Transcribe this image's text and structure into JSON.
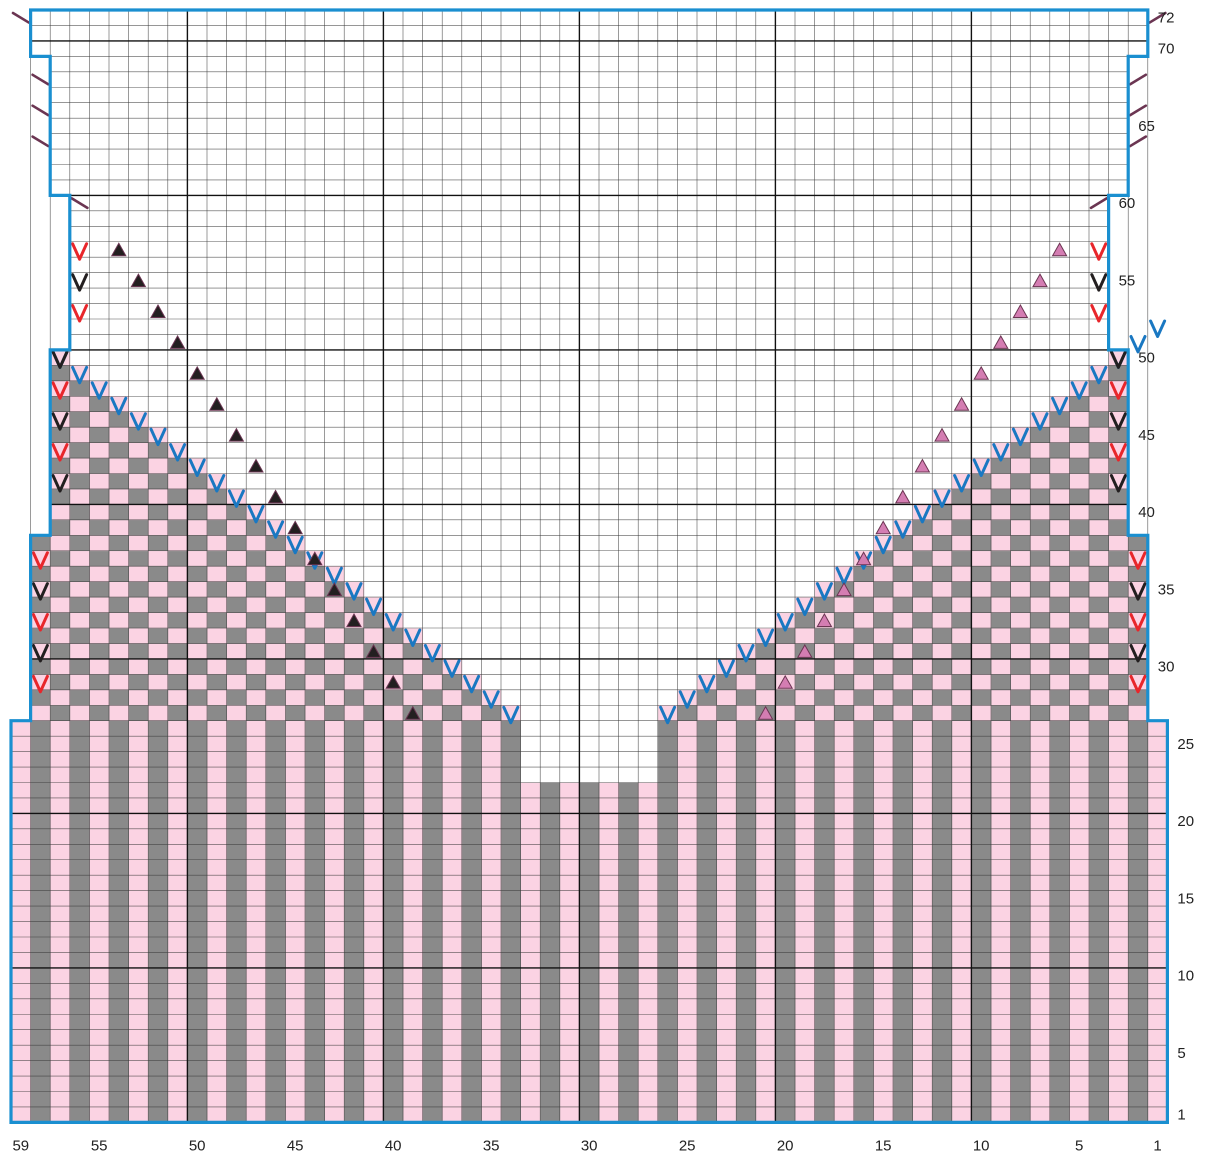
{
  "chart_data": {
    "type": "knitting-chart",
    "stitches": 59,
    "rows": 72,
    "row_labels": [
      "1",
      "5",
      "10",
      "15",
      "20",
      "25",
      "30",
      "35",
      "40",
      "45",
      "50",
      "55",
      "60",
      "65",
      "70",
      "72"
    ],
    "stitch_labels": [
      "59",
      "55",
      "50",
      "45",
      "40",
      "35",
      "30",
      "25",
      "20",
      "15",
      "10",
      "5",
      "1"
    ],
    "colors": {
      "contrast": "#8a8a8a",
      "main": "#fbd3e3",
      "border": "#1a8fd0",
      "blue_v": "#1a78c2",
      "red_v": "#e8262b",
      "black_v": "#231f20",
      "pink_triangle": "#d47db2",
      "black_triangle": "#231f20",
      "diag_line": "#6b3552"
    },
    "body": {
      "rows": [
        1,
        26
      ],
      "pattern": "vertical stripes, contrast on even stitch columns",
      "center_opening": {
        "stitches": [
          27,
          33
        ],
        "from_row": 23
      }
    },
    "neck_opening": {
      "blue_v_right_side": [
        [
          26,
          27
        ],
        [
          25,
          28
        ],
        [
          24,
          29
        ],
        [
          23,
          30
        ],
        [
          22,
          31
        ],
        [
          21,
          32
        ],
        [
          20,
          33
        ],
        [
          19,
          34
        ],
        [
          18,
          35
        ],
        [
          17,
          36
        ],
        [
          16,
          37
        ],
        [
          15,
          38
        ],
        [
          14,
          39
        ],
        [
          13,
          40
        ],
        [
          12,
          41
        ],
        [
          11,
          42
        ],
        [
          10,
          43
        ],
        [
          9,
          44
        ],
        [
          8,
          45
        ],
        [
          7,
          46
        ],
        [
          6,
          47
        ],
        [
          5,
          48
        ],
        [
          4,
          49
        ],
        [
          3,
          50
        ],
        [
          2,
          51
        ],
        [
          1,
          52
        ]
      ],
      "blue_v_left_side": [
        [
          34,
          27
        ],
        [
          35,
          28
        ],
        [
          36,
          29
        ],
        [
          37,
          30
        ],
        [
          38,
          31
        ],
        [
          39,
          32
        ],
        [
          40,
          33
        ],
        [
          41,
          34
        ],
        [
          42,
          35
        ],
        [
          43,
          36
        ],
        [
          44,
          37
        ],
        [
          45,
          38
        ],
        [
          46,
          39
        ],
        [
          47,
          40
        ],
        [
          48,
          41
        ],
        [
          49,
          42
        ],
        [
          50,
          43
        ],
        [
          51,
          44
        ],
        [
          52,
          45
        ],
        [
          53,
          46
        ],
        [
          54,
          47
        ],
        [
          55,
          48
        ],
        [
          56,
          49
        ],
        [
          57,
          50
        ]
      ]
    },
    "pink_triangles": [
      [
        21,
        27
      ],
      [
        20,
        29
      ],
      [
        19,
        31
      ],
      [
        18,
        33
      ],
      [
        17,
        35
      ],
      [
        16,
        37
      ],
      [
        15,
        39
      ],
      [
        14,
        41
      ],
      [
        13,
        43
      ],
      [
        12,
        45
      ],
      [
        11,
        47
      ],
      [
        10,
        49
      ],
      [
        9,
        51
      ],
      [
        8,
        53
      ],
      [
        7,
        55
      ],
      [
        6,
        57
      ]
    ],
    "black_triangles": [
      [
        39,
        27
      ],
      [
        40,
        29
      ],
      [
        41,
        31
      ],
      [
        42,
        33
      ],
      [
        43,
        35
      ],
      [
        44,
        37
      ],
      [
        45,
        39
      ],
      [
        46,
        41
      ],
      [
        47,
        43
      ],
      [
        48,
        45
      ],
      [
        49,
        47
      ],
      [
        50,
        49
      ],
      [
        51,
        51
      ],
      [
        52,
        53
      ],
      [
        53,
        55
      ],
      [
        54,
        57
      ]
    ],
    "red_v": [
      [
        58,
        29
      ],
      [
        58,
        33
      ],
      [
        58,
        37
      ],
      [
        57,
        44
      ],
      [
        57,
        48
      ],
      [
        56,
        53
      ],
      [
        56,
        57
      ],
      [
        2,
        29
      ],
      [
        2,
        33
      ],
      [
        2,
        37
      ],
      [
        3,
        44
      ],
      [
        3,
        48
      ],
      [
        4,
        53
      ],
      [
        4,
        57
      ]
    ],
    "black_v": [
      [
        58,
        31
      ],
      [
        58,
        35
      ],
      [
        57,
        42
      ],
      [
        57,
        46
      ],
      [
        57,
        50
      ],
      [
        56,
        55
      ],
      [
        2,
        31
      ],
      [
        2,
        35
      ],
      [
        3,
        42
      ],
      [
        3,
        46
      ],
      [
        3,
        50
      ],
      [
        4,
        55
      ]
    ],
    "diagonal_marks": [
      [
        56,
        60
      ],
      [
        58,
        64
      ],
      [
        58,
        66
      ],
      [
        58,
        68
      ],
      [
        59,
        72
      ],
      [
        4,
        60
      ],
      [
        2,
        64
      ],
      [
        2,
        66
      ],
      [
        2,
        68
      ],
      [
        1,
        72
      ]
    ],
    "outline_widths": [
      {
        "rows": [
          1,
          26
        ],
        "stitches": [
          1,
          59
        ]
      },
      {
        "rows": [
          27,
          38
        ],
        "stitches": [
          2,
          58
        ]
      },
      {
        "rows": [
          39,
          50
        ],
        "stitches": [
          3,
          57
        ]
      },
      {
        "rows": [
          51,
          60
        ],
        "stitches": [
          4,
          56
        ]
      },
      {
        "rows": [
          61,
          69
        ],
        "stitches": [
          3,
          57
        ]
      },
      {
        "rows": [
          70,
          72
        ],
        "stitches": [
          2,
          58
        ]
      }
    ]
  }
}
